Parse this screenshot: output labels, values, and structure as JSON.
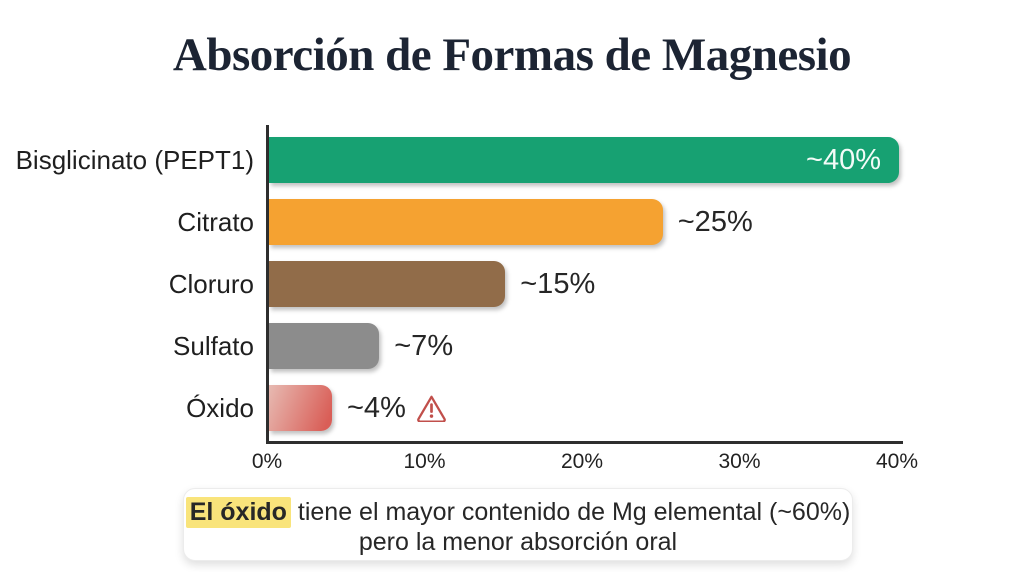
{
  "page": {
    "background": "#ffffff"
  },
  "chart_data": {
    "type": "bar",
    "orientation": "horizontal",
    "title": "Absorción de Formas de Magnesio",
    "categories": [
      "Bisglicinato (PEPT1)",
      "Citrato",
      "Cloruro",
      "Sulfato",
      "Óxido"
    ],
    "values": [
      40,
      25,
      15,
      7,
      4
    ],
    "value_labels": [
      "~40%",
      "~25%",
      "~15%",
      "~7%",
      "~4%"
    ],
    "bar_colors": [
      "#17a172",
      "#f5a231",
      "#916c49",
      "#8c8c8c",
      "#d95e57"
    ],
    "bar_gradients": {
      "4": [
        "#e7bab2",
        "#d95e57"
      ]
    },
    "value_label_inside": [
      true,
      false,
      false,
      false,
      false
    ],
    "warning_rows": [
      4
    ],
    "xlabel": "",
    "ylabel": "",
    "xlim": [
      0,
      40
    ],
    "x_ticks": [
      0,
      10,
      20,
      30,
      40
    ],
    "x_tick_labels": [
      "0%",
      "10%",
      "20%",
      "30%",
      "40%"
    ],
    "grid": false,
    "legend": false
  },
  "note": {
    "highlight_text": "El óxido",
    "line1_rest": " tiene el mayor contenido de Mg elemental (~60%)",
    "line2": "pero la menor absorción oral"
  },
  "icons": {
    "warning": "warning-triangle-icon"
  },
  "colors": {
    "title_text": "#1c2433",
    "axis": "#2e2e2e",
    "label_text": "#1f1f1f",
    "value_text": "#262626",
    "value_text_inside": "#f2fbf7",
    "highlight_bg": "#f9e47b",
    "warning": "#c14f4b",
    "note_bg": "#ffffff"
  }
}
